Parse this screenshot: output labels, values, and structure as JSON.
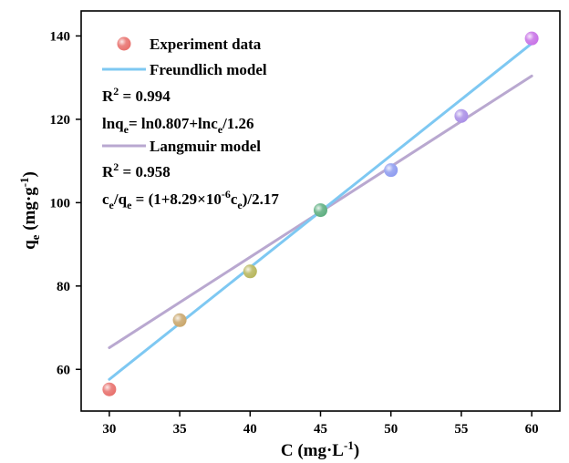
{
  "chart_data": {
    "type": "scatter",
    "xlabel": "C (mg·L⁻¹)",
    "ylabel": "qₑ (mg·g⁻¹)",
    "xlim": [
      28,
      62
    ],
    "ylim": [
      50,
      146
    ],
    "xticks": [
      30,
      35,
      40,
      45,
      50,
      55,
      60
    ],
    "yticks": [
      60,
      80,
      100,
      120,
      140
    ],
    "grid": false,
    "legend_position": "top-left",
    "series": [
      {
        "name": "Experiment data",
        "kind": "points",
        "x": [
          30,
          35,
          40,
          45,
          50,
          55,
          60
        ],
        "y": [
          55.2,
          71.8,
          83.5,
          98.2,
          107.8,
          120.8,
          139.4
        ],
        "colors": [
          "#e8706c",
          "#c9a66b",
          "#b7b65c",
          "#5dae80",
          "#8e9cf0",
          "#a98ee6",
          "#c771e6"
        ]
      },
      {
        "name": "Freundlich model",
        "kind": "line",
        "color": "#7ec8f2",
        "x": [
          30,
          60
        ],
        "y": [
          57.6,
          138.2
        ]
      },
      {
        "name": "Langmuir model",
        "kind": "line",
        "color": "#b9a8d0",
        "x": [
          30,
          60
        ],
        "y": [
          65.2,
          130.4
        ]
      }
    ],
    "annotations": {
      "freundlich_r2": "R² = 0.994",
      "freundlich_eq": "lnqₑ= ln0.807+lncₑ/1.26",
      "langmuir_r2": "R² = 0.958",
      "langmuir_eq": "cₑ/qₑ = (1+8.29×10⁻⁶cₑ)/2.17"
    }
  }
}
